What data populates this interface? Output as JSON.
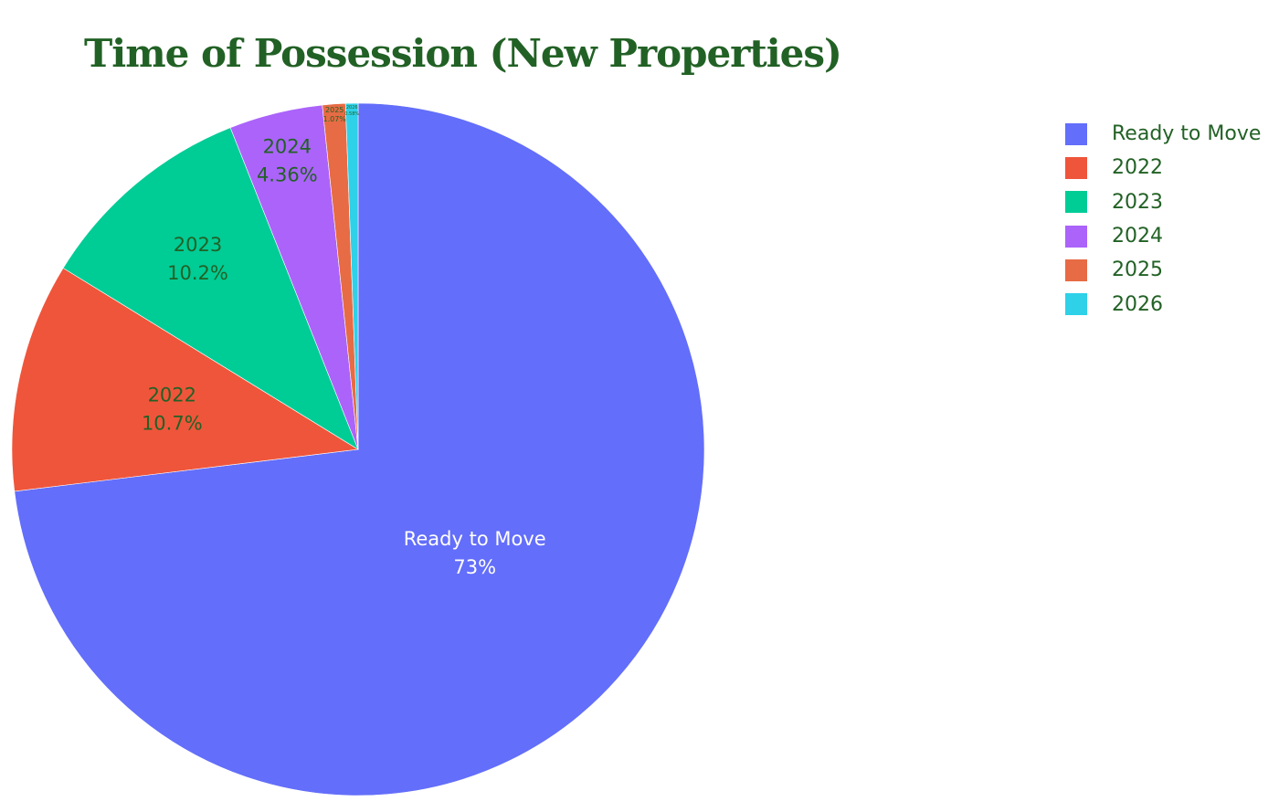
{
  "chart_data": {
    "type": "pie",
    "title": "Time of Possession (New Properties)",
    "categories": [
      "Ready to Move",
      "2022",
      "2023",
      "2024",
      "2025",
      "2026"
    ],
    "values": [
      73.0,
      10.7,
      10.2,
      4.36,
      1.07,
      0.58
    ],
    "slice_labels": [
      {
        "name": "Ready to Move",
        "percent": "73%"
      },
      {
        "name": "2022",
        "percent": "10.7%"
      },
      {
        "name": "2023",
        "percent": "10.2%"
      },
      {
        "name": "2024",
        "percent": "4.36%"
      },
      {
        "name": "2025",
        "percent": "1.07%"
      },
      {
        "name": "2026",
        "percent": "0.58%"
      }
    ],
    "colors": [
      "#636efa",
      "#ef553b",
      "#00cc96",
      "#ab63fa",
      "#e76b44",
      "#2ed1e8"
    ],
    "label_colors": [
      "#ffffff",
      "#226125",
      "#226125",
      "#226125",
      "#226125",
      "#226125"
    ],
    "text_color": "#226125",
    "legend_placement": "top-right",
    "direction": "clockwise",
    "start_angle": "12 o'clock"
  }
}
